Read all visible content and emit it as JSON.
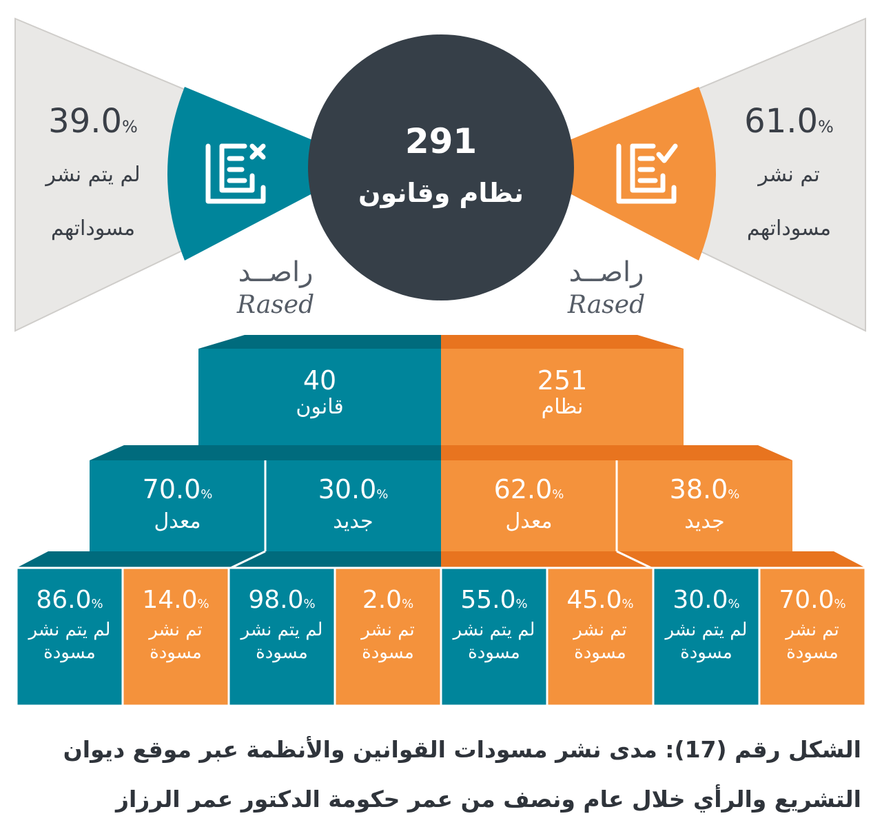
{
  "chart_data": {
    "type": "infographic",
    "total": {
      "value": "291",
      "label": "نظام وقانون"
    },
    "published": {
      "percent": 61.0,
      "value_text": "61.0",
      "label_line1": "تم نشر",
      "label_line2": "مسوداتهم"
    },
    "not_published": {
      "percent": 39.0,
      "value_text": "39.0",
      "label_line1": "لم يتم نشر",
      "label_line2": "مسوداتهم"
    },
    "percent_sign": "%",
    "categories": [
      {
        "name": "قانون",
        "value": 40
      },
      {
        "name": "نظام",
        "value": 251
      }
    ],
    "breakdown": [
      {
        "category": "قانون",
        "type": "معدل",
        "percent": 70.0,
        "value_text": "70.0"
      },
      {
        "category": "قانون",
        "type": "جديد",
        "percent": 30.0,
        "value_text": "30.0"
      },
      {
        "category": "نظام",
        "type": "معدل",
        "percent": 62.0,
        "value_text": "62.0"
      },
      {
        "category": "نظام",
        "type": "جديد",
        "percent": 38.0,
        "value_text": "38.0"
      }
    ],
    "details": [
      {
        "category": "قانون",
        "type": "معدل",
        "status": "not_published",
        "percent": 86.0,
        "value_text": "86.0",
        "label": "لم يتم نشر مسودة"
      },
      {
        "category": "قانون",
        "type": "معدل",
        "status": "published",
        "percent": 14.0,
        "value_text": "14.0",
        "label": "تم نشر مسودة"
      },
      {
        "category": "قانون",
        "type": "جديد",
        "status": "not_published",
        "percent": 98.0,
        "value_text": "98.0",
        "label": "لم يتم نشر مسودة"
      },
      {
        "category": "قانون",
        "type": "جديد",
        "status": "published",
        "percent": 2.0,
        "value_text": "2.0",
        "label": "تم نشر مسودة"
      },
      {
        "category": "نظام",
        "type": "معدل",
        "status": "not_published",
        "percent": 55.0,
        "value_text": "55.0",
        "label": "لم يتم نشر مسودة"
      },
      {
        "category": "نظام",
        "type": "معدل",
        "status": "published",
        "percent": 45.0,
        "value_text": "45.0",
        "label": "تم نشر مسودة"
      },
      {
        "category": "نظام",
        "type": "جديد",
        "status": "not_published",
        "percent": 30.0,
        "value_text": "30.0",
        "label": "لم يتم نشر مسودة"
      },
      {
        "category": "نظام",
        "type": "جديد",
        "status": "published",
        "percent": 70.0,
        "value_text": "70.0",
        "label": "تم نشر مسودة"
      }
    ]
  },
  "brand": {
    "arabic": "راصــد",
    "latin": "Rased"
  },
  "caption": {
    "line1": "الشكل رقم (17): مدى نشر مسودات القوانين والأنظمة عبر موقع ديوان",
    "line2": "التشريع والرأي خلال عام ونصف من عمر حكومة الدكتور عمر الرزاز"
  },
  "colors": {
    "teal": "#00859b",
    "teal_dark": "#006b7d",
    "orange": "#f4923c",
    "orange_dark": "#e8741f",
    "navy": "#363f48",
    "grey": "#e9e8e6"
  }
}
